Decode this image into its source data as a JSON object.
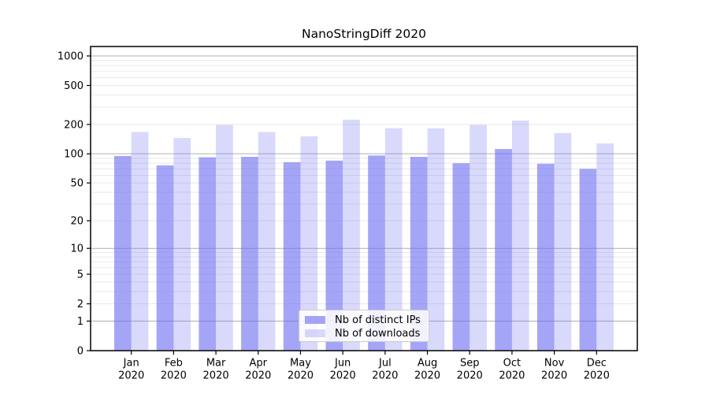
{
  "title": "NanoStringDiff 2020",
  "chart_data": {
    "type": "bar",
    "title": "NanoStringDiff 2020",
    "categories": [
      "Jan 2020",
      "Feb 2020",
      "Mar 2020",
      "Apr 2020",
      "May 2020",
      "Jun 2020",
      "Jul 2020",
      "Aug 2020",
      "Sep 2020",
      "Oct 2020",
      "Nov 2020",
      "Dec 2020"
    ],
    "series": [
      {
        "name": "Nb of distinct IPs",
        "color": "rgba(110,110,242,0.62)",
        "values": [
          95,
          76,
          92,
          93,
          82,
          85,
          96,
          93,
          80,
          112,
          79,
          70
        ]
      },
      {
        "name": "Nb of downloads",
        "color": "rgba(110,110,242,0.26)",
        "values": [
          167,
          145,
          198,
          167,
          151,
          224,
          183,
          182,
          198,
          219,
          163,
          128
        ]
      }
    ],
    "y_axis": {
      "scale": "log1p",
      "ticks": [
        0,
        1,
        2,
        5,
        10,
        20,
        50,
        100,
        200,
        500,
        1000
      ],
      "major_grid_at": [
        1,
        10,
        100,
        1000
      ],
      "range": [
        0,
        1000
      ]
    },
    "xlabel": "",
    "ylabel": "",
    "grid": true,
    "legend_position": "lower center"
  },
  "colors": {
    "background": "#ffffff",
    "axis": "#000000",
    "major_grid": "#b0b0b0",
    "minor_grid": "#e9e9e9",
    "tick_label": "#000000"
  }
}
